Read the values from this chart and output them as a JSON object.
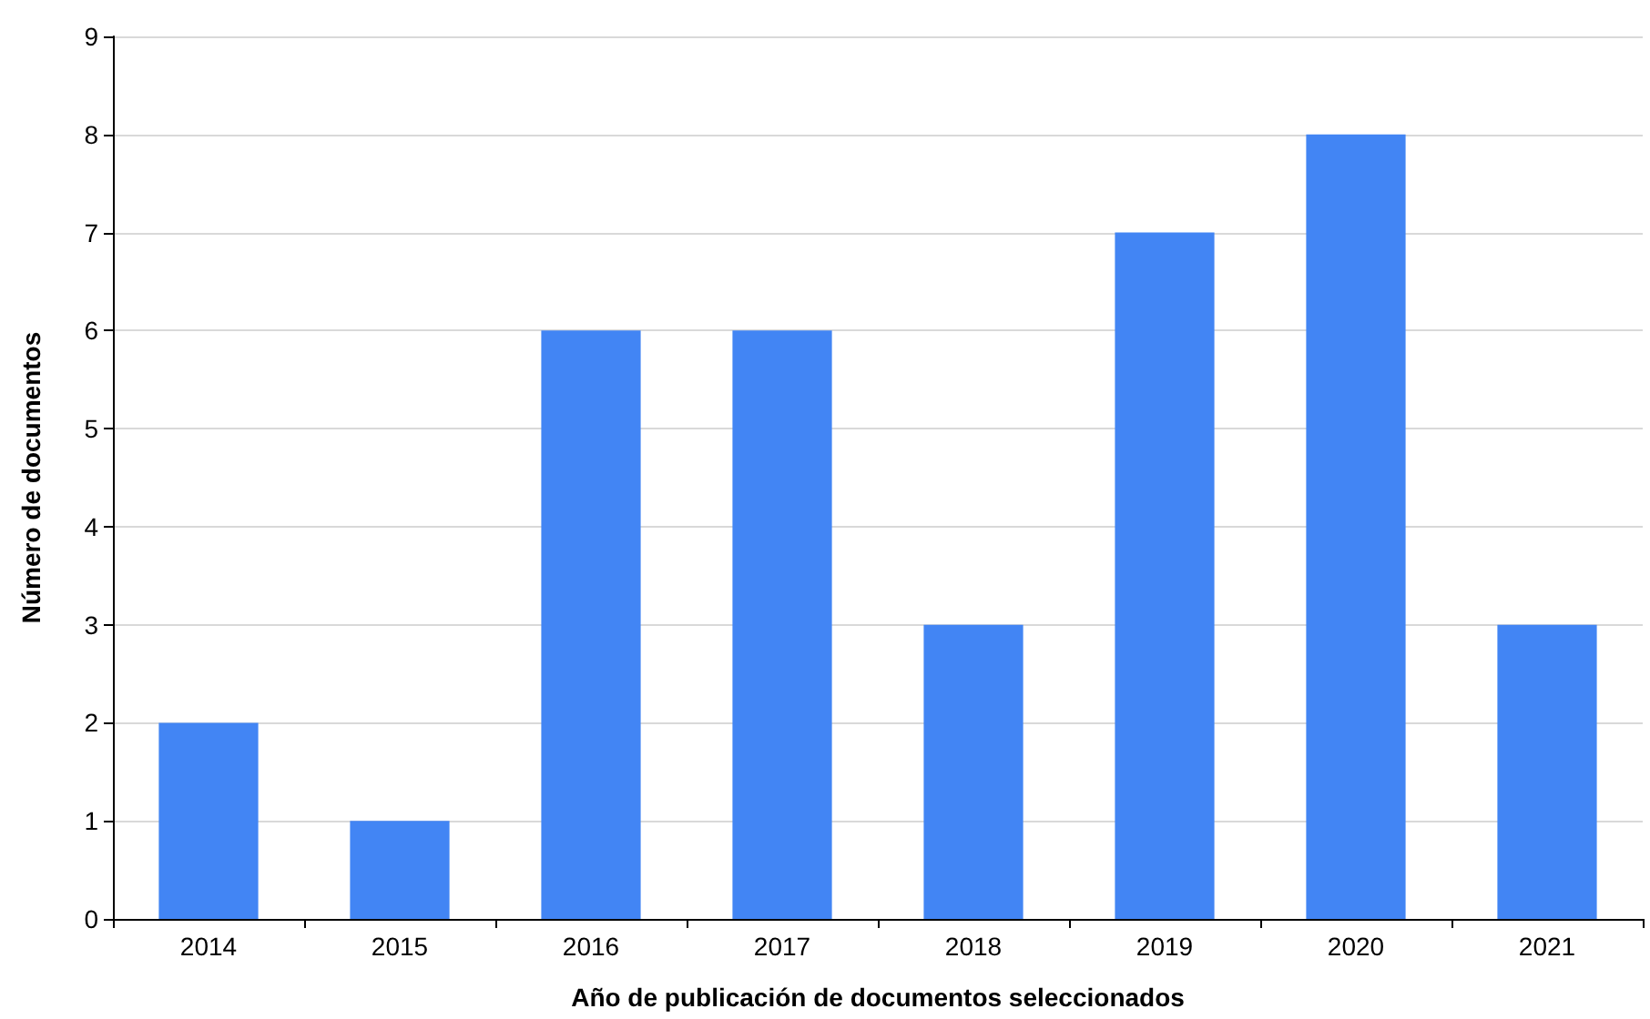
{
  "chart_data": {
    "type": "bar",
    "xlabel": "Año de publicación de documentos seleccionados",
    "ylabel": "Número de documentos",
    "categories": [
      "2014",
      "2015",
      "2016",
      "2017",
      "2018",
      "2019",
      "2020",
      "2021"
    ],
    "values": [
      2,
      1,
      6,
      6,
      3,
      7,
      8,
      3
    ],
    "color": "#4285f4",
    "ylim": [
      0,
      9
    ],
    "yticks": [
      0,
      1,
      2,
      3,
      4,
      5,
      6,
      7,
      8,
      9
    ],
    "grid": "y"
  }
}
